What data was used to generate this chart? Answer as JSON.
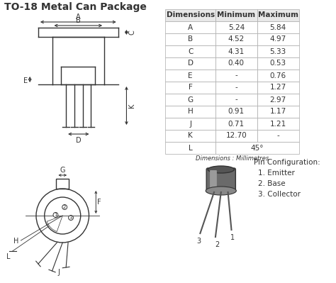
{
  "title": "TO-18 Metal Can Package",
  "title_fontsize": 10,
  "title_fontweight": "bold",
  "table_headers": [
    "Dimensions",
    "Minimum",
    "Maximum"
  ],
  "table_rows": [
    [
      "A",
      "5.24",
      "5.84"
    ],
    [
      "B",
      "4.52",
      "4.97"
    ],
    [
      "C",
      "4.31",
      "5.33"
    ],
    [
      "D",
      "0.40",
      "0.53"
    ],
    [
      "E",
      "-",
      "0.76"
    ],
    [
      "F",
      "-",
      "1.27"
    ],
    [
      "G",
      "-",
      "2.97"
    ],
    [
      "H",
      "0.91",
      "1.17"
    ],
    [
      "J",
      "0.71",
      "1.21"
    ],
    [
      "K",
      "12.70",
      "-"
    ],
    [
      "L",
      "45°",
      ""
    ]
  ],
  "table_note": "Dimensions : Millimetres",
  "pin_config_title": "Pin Configuration:",
  "pin_config": [
    "1. Emitter",
    "2. Base",
    "3. Collector"
  ],
  "bg_color": "#ffffff",
  "line_color": "#333333"
}
